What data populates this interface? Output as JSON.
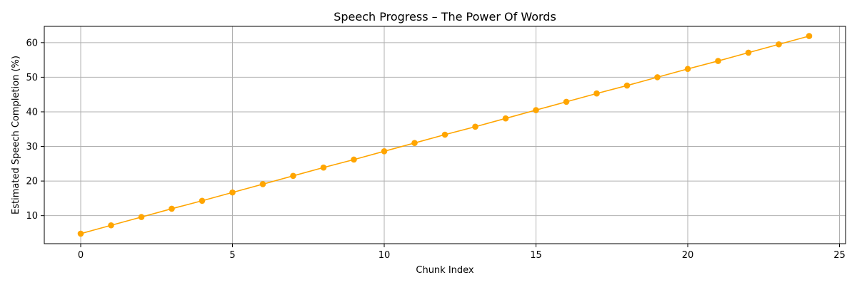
{
  "chart_data": {
    "type": "line",
    "title": "Speech Progress – The Power Of Words",
    "xlabel": "Chunk Index",
    "ylabel": "Estimated Speech Completion (%)",
    "xlim": [
      -1.2,
      25.2
    ],
    "ylim": [
      1.9,
      64.7
    ],
    "xticks": [
      0,
      5,
      10,
      15,
      20,
      25
    ],
    "yticks": [
      10,
      20,
      30,
      40,
      50,
      60
    ],
    "grid": true,
    "series": [
      {
        "color": "#FFA500",
        "marker": "circle",
        "x": [
          0,
          1,
          2,
          3,
          4,
          5,
          6,
          7,
          8,
          9,
          10,
          11,
          12,
          13,
          14,
          15,
          16,
          17,
          18,
          19,
          20,
          21,
          22,
          23,
          24
        ],
        "values": [
          4.8,
          7.2,
          9.6,
          12.0,
          14.3,
          16.7,
          19.1,
          21.5,
          23.9,
          26.2,
          28.6,
          31.0,
          33.4,
          35.7,
          38.1,
          40.5,
          42.9,
          45.3,
          47.6,
          50.0,
          52.4,
          54.7,
          57.1,
          59.5,
          61.9
        ]
      }
    ]
  }
}
